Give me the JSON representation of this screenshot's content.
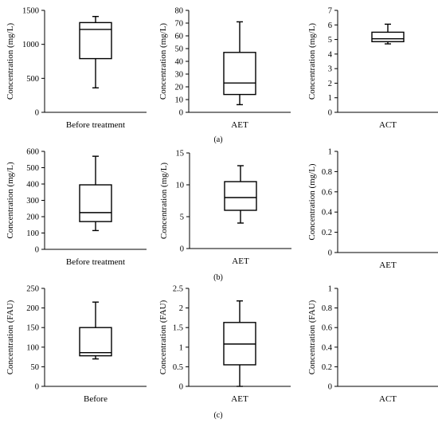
{
  "panel_labels": [
    "(a)",
    "(b)",
    "(c)"
  ],
  "chart_data": [
    {
      "type": "box",
      "panel": "(a)",
      "ylabel": "Concentration (mg/L)",
      "category": "Before treatment",
      "ylim": [
        0,
        1500
      ],
      "yticks": [
        "0",
        "500",
        "1000",
        "1500"
      ],
      "box": {
        "min": 360,
        "q1": 790,
        "median": 1220,
        "q3": 1320,
        "max": 1410
      }
    },
    {
      "type": "box",
      "panel": "(a)",
      "ylabel": "Concentration (mg/L)",
      "category": "AET",
      "ylim": [
        0,
        80
      ],
      "yticks": [
        "0",
        "10",
        "20",
        "30",
        "40",
        "50",
        "60",
        "70",
        "80"
      ],
      "box": {
        "min": 6,
        "q1": 14,
        "median": 23,
        "q3": 47,
        "max": 71
      }
    },
    {
      "type": "box",
      "panel": "(a)",
      "ylabel": "Concentration (mg/L)",
      "category": "ACT",
      "ylim": [
        0,
        7
      ],
      "yticks": [
        "0",
        "1",
        "2",
        "3",
        "4",
        "5",
        "6",
        "7"
      ],
      "box": {
        "min": 4.7,
        "q1": 4.85,
        "median": 5.05,
        "q3": 5.5,
        "max": 6.05
      }
    },
    {
      "type": "box",
      "panel": "(b)",
      "ylabel": "Concentration (mg/L)",
      "category": "Before treatment",
      "ylim": [
        0,
        600
      ],
      "yticks": [
        "0",
        "100",
        "200",
        "300",
        "400",
        "500",
        "600"
      ],
      "box": {
        "min": 115,
        "q1": 170,
        "median": 225,
        "q3": 395,
        "max": 570
      }
    },
    {
      "type": "box",
      "panel": "(b)",
      "ylabel": "Concentration (mg/L)",
      "category": "AET",
      "ylim": [
        0,
        15
      ],
      "yticks": [
        "0",
        "5",
        "10",
        "15"
      ],
      "box": {
        "min": 4,
        "q1": 6,
        "median": 8,
        "q3": 10.5,
        "max": 13
      }
    },
    {
      "type": "box",
      "panel": "(b)",
      "ylabel": "Concentration (mg/L)",
      "category": "AET",
      "ylim": [
        0,
        1
      ],
      "yticks": [
        "0",
        "0.2",
        "0.4",
        "0.6",
        "0.8",
        "1"
      ],
      "box": {
        "min": 0,
        "q1": 0,
        "median": 0,
        "q3": 0,
        "max": 0
      }
    },
    {
      "type": "box",
      "panel": "(c)",
      "ylabel": "Concentration (FAU)",
      "category": "Before",
      "ylim": [
        0,
        250
      ],
      "yticks": [
        "0",
        "50",
        "100",
        "150",
        "200",
        "250"
      ],
      "box": {
        "min": 70,
        "q1": 78,
        "median": 86,
        "q3": 150,
        "max": 215
      }
    },
    {
      "type": "box",
      "panel": "(c)",
      "ylabel": "Concentration (FAU)",
      "category": "AET",
      "ylim": [
        0,
        2.5
      ],
      "yticks": [
        "0",
        "0.5",
        "1",
        "1.5",
        "2",
        "2.5"
      ],
      "box": {
        "min": 0,
        "q1": 0.55,
        "median": 1.08,
        "q3": 1.63,
        "max": 2.18
      }
    },
    {
      "type": "box",
      "panel": "(c)",
      "ylabel": "Concentration (FAU)",
      "category": "ACT",
      "ylim": [
        0,
        1
      ],
      "yticks": [
        "0",
        "0.2",
        "0.4",
        "0.6",
        "0.8",
        "1"
      ],
      "box": {
        "min": 0,
        "q1": 0,
        "median": 0,
        "q3": 0,
        "max": 0
      }
    }
  ]
}
